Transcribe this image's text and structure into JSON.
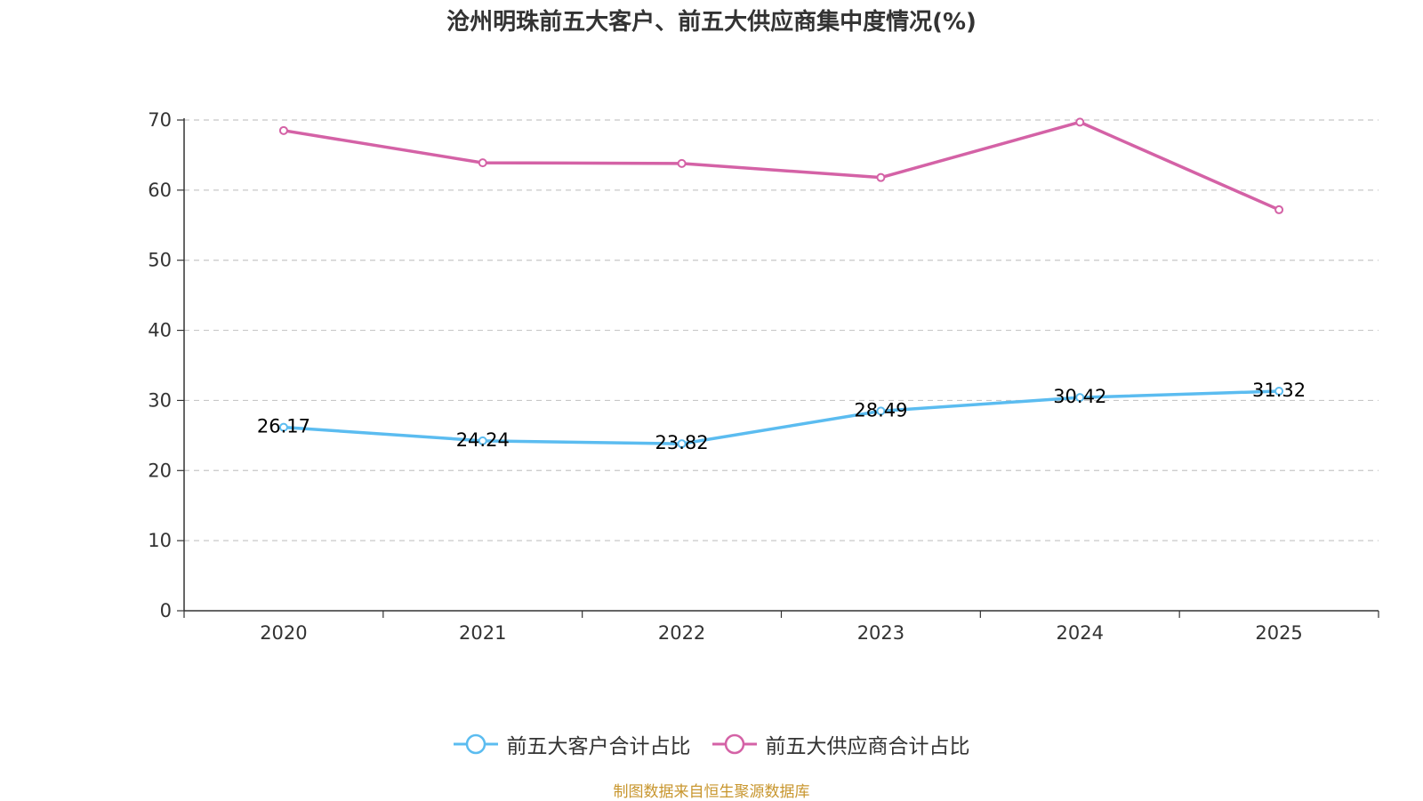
{
  "chart_data": {
    "type": "line",
    "title": "沧州明珠前五大客户、前五大供应商集中度情况(%)",
    "categories": [
      "2020",
      "2021",
      "2022",
      "2023",
      "2024",
      "2025"
    ],
    "ylim": [
      0,
      70
    ],
    "yticks": [
      "0",
      "10",
      "20",
      "30",
      "40",
      "50",
      "60",
      "70"
    ],
    "grid": true,
    "legend_position": "bottom-center",
    "series": [
      {
        "name": "前五大客户合计占比",
        "color": "#5bbcf0",
        "values": [
          26.17,
          24.24,
          23.82,
          28.49,
          30.42,
          31.32
        ],
        "labels": [
          "26.17",
          "24.24",
          "23.82",
          "28.49",
          "30.42",
          "31.32"
        ],
        "show_labels": true
      },
      {
        "name": "前五大供应商合计占比",
        "color": "#d462a6",
        "values": [
          68.5,
          63.9,
          63.8,
          61.8,
          69.7,
          57.2
        ],
        "show_labels": false
      }
    ]
  },
  "footer": {
    "source": "制图数据来自恒生聚源数据库"
  }
}
